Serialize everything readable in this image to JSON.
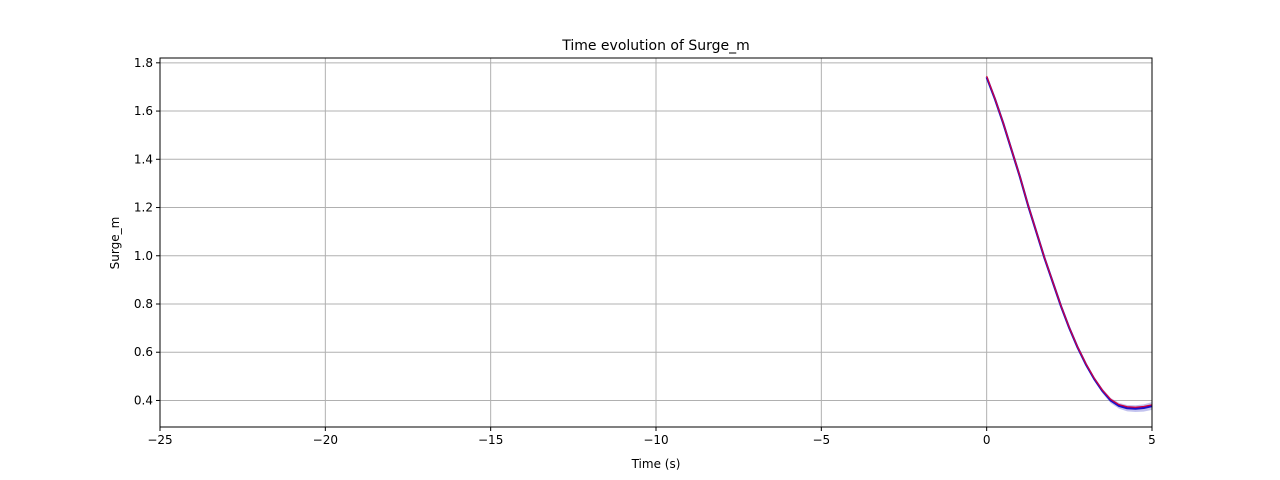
{
  "chart_data": {
    "type": "line",
    "title": "Time evolution of Surge_m",
    "xlabel": "Time (s)",
    "ylabel": "Surge_m",
    "xlim": [
      -25,
      5
    ],
    "ylim": [
      0.29,
      1.82
    ],
    "xticks": [
      -25,
      -20,
      -15,
      -10,
      -5,
      0,
      5
    ],
    "xtick_labels": [
      "−25",
      "−20",
      "−15",
      "−10",
      "−5",
      "0",
      "5"
    ],
    "yticks": [
      0.4,
      0.6,
      0.8,
      1.0,
      1.2,
      1.4,
      1.6,
      1.8
    ],
    "ytick_labels": [
      "0.4",
      "0.6",
      "0.8",
      "1.0",
      "1.2",
      "1.4",
      "1.6",
      "1.8"
    ],
    "grid": true,
    "colors": {
      "band": "#7b7bd9",
      "series_a": "#1a10c9",
      "series_b": "#d4003c",
      "grid": "#b0b0b0"
    },
    "series": [
      {
        "x": [
          0,
          0.25,
          0.5,
          0.75,
          1.0,
          1.25,
          1.5,
          1.75,
          2.0,
          2.25,
          2.5,
          2.75,
          3.0,
          3.25,
          3.5,
          3.75,
          4.0,
          4.25,
          4.5,
          4.75,
          5.0
        ],
        "values": [
          1.74,
          1.65,
          1.55,
          1.44,
          1.33,
          1.21,
          1.1,
          0.99,
          0.89,
          0.79,
          0.7,
          0.62,
          0.55,
          0.49,
          0.44,
          0.4,
          0.378,
          0.368,
          0.366,
          0.369,
          0.377
        ],
        "band_halfwidth": [
          0,
          0.002,
          0.003,
          0.004,
          0.005,
          0.005,
          0.006,
          0.006,
          0.006,
          0.006,
          0.007,
          0.007,
          0.008,
          0.009,
          0.01,
          0.011,
          0.012,
          0.013,
          0.014,
          0.015,
          0.016
        ]
      },
      {
        "x": [
          0,
          0.25,
          0.5,
          0.75,
          1.0,
          1.25,
          1.5,
          1.75,
          2.0,
          2.25,
          2.5,
          2.75,
          3.0,
          3.25,
          3.5,
          3.75,
          4.0,
          4.25,
          4.5,
          4.75,
          5.0
        ],
        "values": [
          1.745,
          1.652,
          1.552,
          1.442,
          1.332,
          1.212,
          1.102,
          0.992,
          0.892,
          0.792,
          0.702,
          0.622,
          0.553,
          0.493,
          0.443,
          0.405,
          0.383,
          0.374,
          0.372,
          0.375,
          0.382
        ]
      }
    ]
  }
}
